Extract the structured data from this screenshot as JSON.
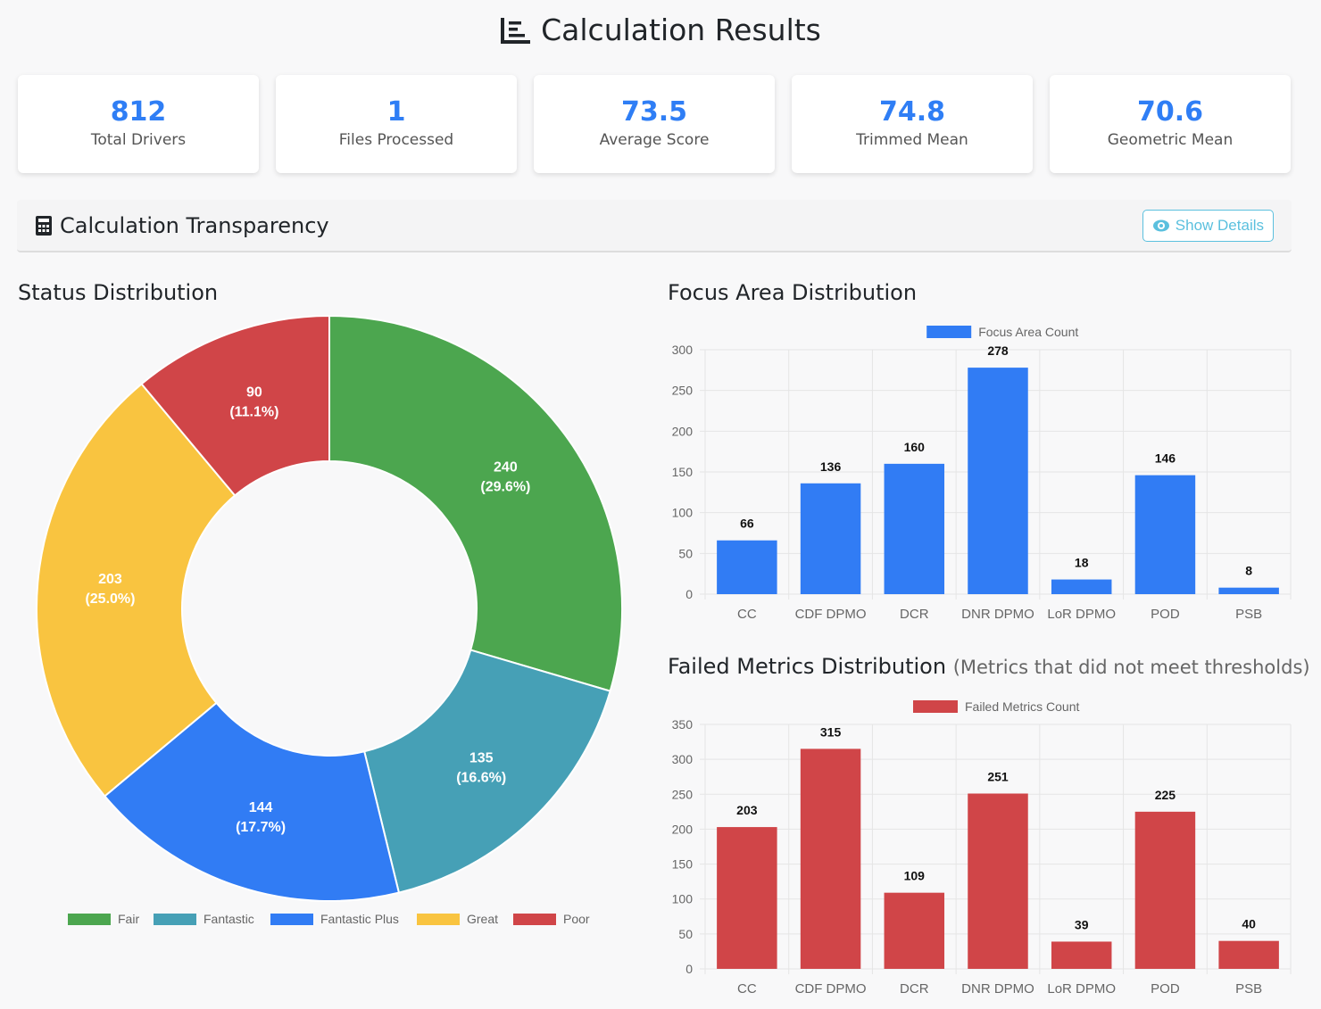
{
  "title": "Calculation Results",
  "stats": [
    {
      "value": "812",
      "label": "Total Drivers"
    },
    {
      "value": "1",
      "label": "Files Processed"
    },
    {
      "value": "73.5",
      "label": "Average Score"
    },
    {
      "value": "74.8",
      "label": "Trimmed Mean"
    },
    {
      "value": "70.6",
      "label": "Geometric Mean"
    }
  ],
  "transparency": {
    "title": "Calculation Transparency",
    "button": "Show Details"
  },
  "sections": {
    "status": "Status Distribution",
    "focus": "Focus Area Distribution",
    "failed": "Failed Metrics Distribution",
    "failed_note": "(Metrics that did not meet thresholds)"
  },
  "chart_data": [
    {
      "type": "pie",
      "title": "Status Distribution",
      "categories": [
        "Fair",
        "Fantastic",
        "Fantastic Plus",
        "Great",
        "Poor"
      ],
      "values": [
        240,
        135,
        144,
        203,
        90
      ],
      "labels": [
        "(29.6%)",
        "(16.6%)",
        "(17.7%)",
        "(25.0%)",
        "(11.1%)"
      ],
      "colors": [
        "#4ca64f",
        "#46a0b6",
        "#317cf4",
        "#f9c440",
        "#d04548"
      ],
      "legend": "bottom"
    },
    {
      "type": "bar",
      "title": "Focus Area Distribution",
      "categories": [
        "CC",
        "CDF DPMO",
        "DCR",
        "DNR DPMO",
        "LoR DPMO",
        "POD",
        "PSB"
      ],
      "series": [
        {
          "name": "Focus Area Count",
          "values": [
            66,
            136,
            160,
            278,
            18,
            146,
            8
          ],
          "color": "#317cf4"
        }
      ],
      "ylim": [
        0,
        300
      ],
      "yticks": [
        0,
        50,
        100,
        150,
        200,
        250,
        300
      ],
      "grid": true,
      "legend": "top"
    },
    {
      "type": "bar",
      "title": "Failed Metrics Distribution",
      "categories": [
        "CC",
        "CDF DPMO",
        "DCR",
        "DNR DPMO",
        "LoR DPMO",
        "POD",
        "PSB"
      ],
      "series": [
        {
          "name": "Failed Metrics Count",
          "values": [
            203,
            315,
            109,
            251,
            39,
            225,
            40
          ],
          "color": "#d04548"
        }
      ],
      "ylim": [
        0,
        350
      ],
      "yticks": [
        0,
        50,
        100,
        150,
        200,
        250,
        300,
        350
      ],
      "grid": true,
      "legend": "top"
    }
  ]
}
